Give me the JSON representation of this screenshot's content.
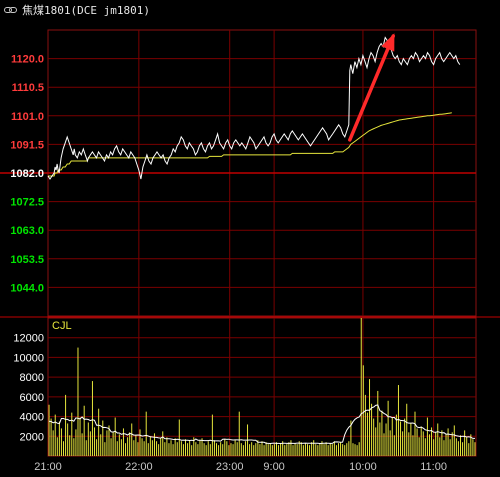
{
  "title": "焦煤1801(DCE jm1801)",
  "colors": {
    "grid": "#7a0000",
    "border": "#8a1010",
    "base_line": "#c00000",
    "price_up": "#ff3b3b",
    "price_base": "#ffffff",
    "price_down": "#00e600",
    "price_line": "#ffffff",
    "avg_line": "#e6e63c",
    "volume": "#e6e63c",
    "oi_line": "#ffffff",
    "arrow": "#ff2a2a",
    "time_label": "#c8c8c8",
    "volume_label": "#ffffff",
    "cjl_label": "#e6e63c"
  },
  "chart_data": [
    {
      "type": "line",
      "panel": "price",
      "y_ticks": [
        "1120.0",
        "1110.5",
        "1101.0",
        "1091.5",
        "1082.0",
        "1072.5",
        "1063.0",
        "1053.5",
        "1044.0"
      ],
      "ylim": [
        1034.5,
        1129.5
      ],
      "base_price": 1082.0,
      "x": [
        0,
        2,
        4,
        6,
        7,
        8,
        9,
        10,
        11,
        13,
        15,
        17,
        19,
        21,
        23,
        25,
        26,
        27,
        29,
        31,
        33,
        35,
        37,
        38,
        39,
        40,
        42,
        44,
        46,
        48,
        50,
        52,
        54,
        56,
        58,
        60,
        62,
        64,
        66,
        68,
        70,
        72,
        74,
        76,
        78,
        80,
        82,
        84,
        86,
        88,
        90,
        92,
        94,
        96,
        98,
        100,
        102,
        104,
        106,
        108,
        110,
        112,
        114,
        116,
        118,
        120,
        122,
        124,
        126,
        128,
        130,
        132,
        134,
        136,
        138,
        140,
        142,
        144,
        146,
        148,
        150,
        152,
        154,
        156,
        158,
        160,
        162,
        164,
        166,
        168,
        170,
        172,
        174,
        176,
        178,
        180,
        182,
        184,
        186,
        188,
        190,
        192,
        194,
        196,
        198,
        200,
        202,
        204,
        206,
        208,
        210,
        212,
        214,
        216,
        218,
        220,
        222,
        224,
        226,
        228,
        230,
        232,
        234,
        236,
        238,
        240,
        242,
        244,
        246,
        248,
        250,
        252,
        254,
        256,
        258,
        260,
        262,
        264,
        266,
        268,
        270,
        272,
        274,
        276,
        278,
        280,
        282,
        284,
        286,
        288,
        290,
        292,
        294,
        296,
        298,
        299,
        300,
        302,
        304,
        306,
        308,
        310,
        312,
        314,
        316,
        318,
        320,
        322,
        324,
        326,
        328,
        330,
        332,
        334,
        336,
        338,
        340,
        342,
        344,
        346,
        348,
        350,
        352,
        354,
        356,
        358,
        360,
        362,
        364,
        366,
        368,
        370,
        372,
        374,
        376,
        378,
        380,
        382,
        384,
        386,
        388,
        390,
        392,
        394,
        396,
        398,
        400,
        402,
        404,
        406,
        408,
        410,
        412,
        414,
        416,
        418,
        420,
        422
      ],
      "price": [
        1081,
        1080,
        1081,
        1082,
        1084,
        1083,
        1085,
        1083,
        1082,
        1087,
        1090,
        1092,
        1094,
        1092,
        1090,
        1088,
        1090,
        1088,
        1087,
        1089,
        1088,
        1090,
        1088,
        1087,
        1086,
        1087,
        1088,
        1089,
        1088,
        1087,
        1089,
        1088,
        1087,
        1086,
        1088,
        1087,
        1089,
        1088,
        1090,
        1091,
        1089,
        1088,
        1090,
        1089,
        1088,
        1087,
        1089,
        1088,
        1087,
        1085,
        1083,
        1080,
        1084,
        1086,
        1088,
        1086,
        1085,
        1087,
        1088,
        1089,
        1088,
        1087,
        1088,
        1086,
        1085,
        1087,
        1088,
        1090,
        1089,
        1091,
        1092,
        1094,
        1093,
        1091,
        1090,
        1092,
        1091,
        1090,
        1088,
        1089,
        1091,
        1092,
        1090,
        1089,
        1091,
        1092,
        1090,
        1091,
        1093,
        1095,
        1092,
        1091,
        1090,
        1092,
        1093,
        1091,
        1090,
        1092,
        1093,
        1092,
        1091,
        1092,
        1091,
        1090,
        1092,
        1094,
        1093,
        1092,
        1090,
        1091,
        1092,
        1093,
        1094,
        1092,
        1091,
        1092,
        1094,
        1095,
        1093,
        1092,
        1093,
        1094,
        1095,
        1094,
        1093,
        1095,
        1096,
        1095,
        1094,
        1093,
        1094,
        1095,
        1094,
        1093,
        1092,
        1091,
        1092,
        1093,
        1094,
        1095,
        1096,
        1097,
        1096,
        1095,
        1093,
        1094,
        1095,
        1096,
        1097,
        1098,
        1097,
        1095,
        1094,
        1096,
        1098,
        1116,
        1118,
        1115,
        1119,
        1117,
        1120,
        1118,
        1121,
        1119,
        1117,
        1120,
        1122,
        1121,
        1119,
        1122,
        1124,
        1125,
        1124,
        1127,
        1126,
        1124,
        1123,
        1121,
        1120,
        1121,
        1119,
        1118,
        1120,
        1119,
        1118,
        1120,
        1121,
        1120,
        1122,
        1121,
        1119,
        1120,
        1121,
        1120,
        1122,
        1121,
        1119,
        1118,
        1120,
        1121,
        1122,
        1120,
        1119,
        1120,
        1121,
        1122,
        1121,
        1120,
        1121,
        1119,
        1118
      ],
      "avg": [
        1081,
        1081,
        1081,
        1081,
        1082,
        1082,
        1082,
        1083,
        1083,
        1083,
        1084,
        1084,
        1085,
        1085,
        1086,
        1086,
        1086,
        1086,
        1086,
        1086,
        1086,
        1086,
        1086,
        1086,
        1086,
        1087,
        1087,
        1087,
        1087,
        1087,
        1087,
        1087,
        1087,
        1087,
        1087,
        1087,
        1087,
        1087,
        1087,
        1087,
        1087,
        1087,
        1087,
        1087,
        1087,
        1087,
        1087,
        1087,
        1087,
        1087,
        1087,
        1087,
        1087,
        1087,
        1087,
        1087,
        1087,
        1087,
        1087,
        1087,
        1087,
        1087,
        1087,
        1087,
        1087,
        1087,
        1087,
        1087,
        1087,
        1087,
        1087,
        1087,
        1087,
        1087,
        1087,
        1087,
        1087,
        1087,
        1087,
        1087,
        1087,
        1087,
        1087,
        1087,
        1087,
        1087.5,
        1087.5,
        1087.5,
        1087.5,
        1087.5,
        1087.5,
        1087.5,
        1088,
        1088,
        1088,
        1088,
        1088,
        1088,
        1088,
        1088,
        1088,
        1088,
        1088,
        1088,
        1088,
        1088,
        1088,
        1088,
        1088,
        1088,
        1088,
        1088,
        1088,
        1088,
        1088,
        1088,
        1088,
        1088,
        1088,
        1088,
        1088,
        1088,
        1088,
        1088,
        1088,
        1088,
        1088.5,
        1088.5,
        1088.5,
        1088.5,
        1088.5,
        1088.5,
        1088.5,
        1088.5,
        1088.5,
        1088.5,
        1088.5,
        1088.5,
        1088.5,
        1088.5,
        1088.5,
        1088.5,
        1088.5,
        1088.5,
        1088.5,
        1088.5,
        1088.5,
        1089,
        1089,
        1089,
        1089,
        1089,
        1089.5,
        1090,
        1090.5,
        1091,
        1091.5,
        1092,
        1092.5,
        1093,
        1093.5,
        1094,
        1094.5,
        1095,
        1095.5,
        1096,
        1096.3,
        1096.6,
        1096.9,
        1097.2,
        1097.5,
        1097.8,
        1098,
        1098.2,
        1098.4,
        1098.6,
        1098.8,
        1099,
        1099.2,
        1099.4,
        1099.6,
        1099.7,
        1099.8,
        1099.9,
        1100,
        1100.1,
        1100.2,
        1100.3,
        1100.4,
        1100.5,
        1100.6,
        1100.7,
        1100.8,
        1100.9,
        1101,
        1101,
        1101.1,
        1101.2,
        1101.3,
        1101.4,
        1101.5,
        1101.5,
        1101.6,
        1101.7,
        1101.8,
        1101.9,
        1102
      ]
    },
    {
      "type": "bar",
      "panel": "volume",
      "series_label": "CJL",
      "y_ticks": [
        "12000",
        "10000",
        "8000",
        "6000",
        "4000",
        "2000"
      ],
      "ylim": [
        0,
        14000
      ],
      "x_ticks": [
        {
          "label": "21:00",
          "x": 0
        },
        {
          "label": "22:00",
          "x": 90
        },
        {
          "label": "23:00",
          "x": 180
        },
        {
          "label": "9:00",
          "x": 224
        },
        {
          "label": "10:00",
          "x": 312
        },
        {
          "label": "11:00",
          "x": 382
        }
      ],
      "xlim": [
        0,
        424
      ],
      "volume": [
        5200,
        3800,
        2600,
        4200,
        1900,
        3500,
        2800,
        1500,
        6200,
        3300,
        2100,
        4400,
        1800,
        2700,
        11000,
        3900,
        2300,
        5100,
        1600,
        3400,
        2500,
        7600,
        2900,
        1700,
        4800,
        2200,
        3600,
        1400,
        2600,
        3100,
        1800,
        2400,
        3900,
        1500,
        2200,
        1700,
        2800,
        1300,
        1900,
        2400,
        3300,
        1600,
        2100,
        1400,
        2700,
        1800,
        1500,
        4500,
        1300,
        2000,
        1600,
        2300,
        1500,
        1200,
        1800,
        2500,
        1400,
        1900,
        1300,
        1600,
        1200,
        1800,
        1400,
        3700,
        1500,
        1200,
        1700,
        1300,
        1600,
        1100,
        1900,
        1400,
        1200,
        1600,
        1800,
        1300,
        1100,
        1500,
        1200,
        4200,
        1600,
        1300,
        1100,
        1400,
        1200,
        1700,
        1500,
        1100,
        1300,
        1200,
        1600,
        1400,
        4500,
        1300,
        1100,
        1500,
        3200,
        1200,
        1400,
        1100,
        1300,
        1600,
        1200,
        1500,
        1100,
        1400,
        1200,
        1300,
        1100,
        1200,
        1400,
        1100,
        1300,
        1500,
        1100,
        1200,
        1400,
        1600,
        1100,
        1300,
        1200,
        1500,
        1400,
        1100,
        1300,
        1200,
        1100,
        1400,
        1600,
        1200,
        1100,
        1300,
        1500,
        1200,
        1400,
        1100,
        1300,
        1200,
        1500,
        1100,
        1300,
        1400,
        1200,
        1100,
        1300,
        1500,
        3600,
        1300,
        1200,
        1100,
        1400,
        14000,
        9200,
        6200,
        4400,
        7800,
        5300,
        3800,
        2900,
        6600,
        3400,
        4600,
        2300,
        3300,
        5600,
        2600,
        3900,
        2100,
        4200,
        7200,
        3500,
        2500,
        3800,
        5300,
        2400,
        3300,
        2100,
        4500,
        2800,
        1900,
        3000,
        2500,
        1800,
        3900,
        2200,
        2900,
        1700,
        2400,
        3300,
        1900,
        2600,
        1600,
        2200,
        2800,
        1700,
        2400,
        3100,
        1800,
        1500,
        2100,
        1400,
        2600,
        1900,
        1300,
        2200,
        1700,
        1400
      ]
    }
  ]
}
